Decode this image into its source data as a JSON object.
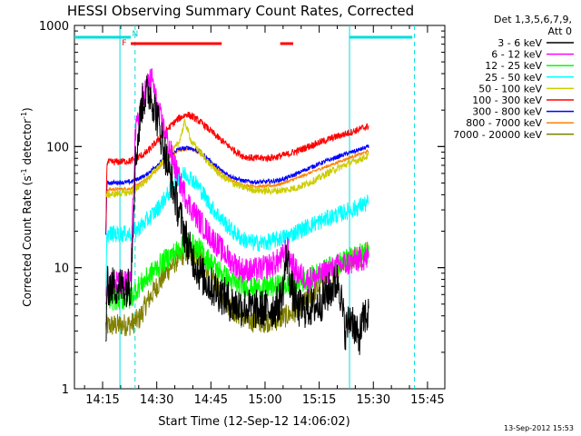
{
  "chart_data": {
    "type": "line",
    "title": "HESSI Observing Summary Count Rates, Corrected",
    "xlabel": "Start Time (12-Sep-12 14:06:02)",
    "ylabel_prefix": "Corrected Count Rate (s",
    "ylabel_exp1": "-1",
    "ylabel_mid": " detector",
    "ylabel_exp2": "-1",
    "ylabel_suffix": ")",
    "yscale": "log",
    "xlim": [
      14.12,
      15.83
    ],
    "ylim": [
      1,
      1000
    ],
    "x_unit": "hour of day (12-Sep-12)",
    "x_ticks": [
      {
        "h": 14.25,
        "label": "14:15"
      },
      {
        "h": 14.5,
        "label": "14:30"
      },
      {
        "h": 14.75,
        "label": "14:45"
      },
      {
        "h": 15.0,
        "label": "15:00"
      },
      {
        "h": 15.25,
        "label": "15:15"
      },
      {
        "h": 15.5,
        "label": "15:30"
      },
      {
        "h": 15.75,
        "label": "15:45"
      }
    ],
    "y_ticks": [
      {
        "v": 1,
        "label": "1"
      },
      {
        "v": 10,
        "label": "10"
      },
      {
        "v": 100,
        "label": "100"
      },
      {
        "v": 1000,
        "label": "1000"
      }
    ],
    "legend_header": [
      "Det 1,3,5,6,7,9,",
      "Att 0"
    ],
    "legend_position": "right",
    "data_start": 14.265,
    "data_end": 15.48,
    "series": [
      {
        "name": "3 - 6 keV",
        "color": "#000000",
        "noise": 0.28,
        "points": [
          [
            14.265,
            2.3
          ],
          [
            14.27,
            7
          ],
          [
            14.3,
            7
          ],
          [
            14.36,
            7
          ],
          [
            14.38,
            7
          ],
          [
            14.4,
            70
          ],
          [
            14.43,
            220
          ],
          [
            14.45,
            270
          ],
          [
            14.47,
            280
          ],
          [
            14.5,
            180
          ],
          [
            14.55,
            70
          ],
          [
            14.6,
            30
          ],
          [
            14.65,
            14
          ],
          [
            14.7,
            9
          ],
          [
            14.75,
            7
          ],
          [
            14.8,
            6
          ],
          [
            14.85,
            5
          ],
          [
            14.95,
            4.5
          ],
          [
            15.05,
            4.6
          ],
          [
            15.08,
            6
          ],
          [
            15.1,
            13
          ],
          [
            15.12,
            7
          ],
          [
            15.15,
            4.6
          ],
          [
            15.2,
            4.6
          ],
          [
            15.25,
            5
          ],
          [
            15.3,
            6.5
          ],
          [
            15.34,
            8
          ],
          [
            15.37,
            3
          ],
          [
            15.4,
            4
          ],
          [
            15.43,
            2.5
          ],
          [
            15.46,
            4
          ],
          [
            15.48,
            4
          ]
        ]
      },
      {
        "name": "6 - 12 keV",
        "color": "#ff00ff",
        "noise": 0.18,
        "points": [
          [
            14.265,
            5.5
          ],
          [
            14.27,
            7.5
          ],
          [
            14.36,
            7.5
          ],
          [
            14.38,
            8
          ],
          [
            14.4,
            120
          ],
          [
            14.43,
            240
          ],
          [
            14.46,
            340
          ],
          [
            14.48,
            360
          ],
          [
            14.5,
            220
          ],
          [
            14.55,
            110
          ],
          [
            14.6,
            55
          ],
          [
            14.65,
            33
          ],
          [
            14.7,
            24
          ],
          [
            14.75,
            18
          ],
          [
            14.8,
            14
          ],
          [
            14.85,
            11
          ],
          [
            14.9,
            9.5
          ],
          [
            14.95,
            9.5
          ],
          [
            15.0,
            10
          ],
          [
            15.05,
            11
          ],
          [
            15.08,
            12
          ],
          [
            15.1,
            15
          ],
          [
            15.12,
            11
          ],
          [
            15.15,
            9
          ],
          [
            15.2,
            8
          ],
          [
            15.25,
            8.5
          ],
          [
            15.3,
            9.5
          ],
          [
            15.35,
            10.5
          ],
          [
            15.4,
            11
          ],
          [
            15.45,
            12
          ],
          [
            15.48,
            12
          ]
        ]
      },
      {
        "name": "12 - 25 keV",
        "color": "#00ff00",
        "noise": 0.16,
        "points": [
          [
            14.265,
            5.5
          ],
          [
            14.27,
            5.5
          ],
          [
            14.38,
            5.5
          ],
          [
            14.4,
            6.5
          ],
          [
            14.45,
            8
          ],
          [
            14.5,
            10
          ],
          [
            14.55,
            12
          ],
          [
            14.6,
            14
          ],
          [
            14.65,
            16
          ],
          [
            14.7,
            14
          ],
          [
            14.75,
            11
          ],
          [
            14.8,
            9
          ],
          [
            14.85,
            7.5
          ],
          [
            14.9,
            7
          ],
          [
            14.95,
            6.8
          ],
          [
            15.0,
            6.8
          ],
          [
            15.05,
            7
          ],
          [
            15.1,
            7.2
          ],
          [
            15.15,
            7.5
          ],
          [
            15.2,
            8
          ],
          [
            15.25,
            9
          ],
          [
            15.3,
            10
          ],
          [
            15.35,
            11
          ],
          [
            15.4,
            12
          ],
          [
            15.45,
            13
          ],
          [
            15.48,
            13
          ]
        ]
      },
      {
        "name": "25 - 50 keV",
        "color": "#00ffff",
        "noise": 0.12,
        "points": [
          [
            14.265,
            5.5
          ],
          [
            14.27,
            19
          ],
          [
            14.38,
            19
          ],
          [
            14.4,
            20
          ],
          [
            14.45,
            24
          ],
          [
            14.5,
            30
          ],
          [
            14.55,
            40
          ],
          [
            14.6,
            55
          ],
          [
            14.63,
            60
          ],
          [
            14.66,
            55
          ],
          [
            14.7,
            45
          ],
          [
            14.75,
            32
          ],
          [
            14.8,
            25
          ],
          [
            14.85,
            20
          ],
          [
            14.9,
            17
          ],
          [
            14.95,
            16
          ],
          [
            15.0,
            16
          ],
          [
            15.05,
            17
          ],
          [
            15.1,
            18
          ],
          [
            15.15,
            20
          ],
          [
            15.2,
            22
          ],
          [
            15.25,
            24
          ],
          [
            15.3,
            26
          ],
          [
            15.35,
            28
          ],
          [
            15.4,
            30
          ],
          [
            15.45,
            33
          ],
          [
            15.48,
            34
          ]
        ]
      },
      {
        "name": "50 - 100 keV",
        "color": "#cccc00",
        "noise": 0.05,
        "points": [
          [
            14.265,
            40
          ],
          [
            14.27,
            40
          ],
          [
            14.38,
            42
          ],
          [
            14.45,
            52
          ],
          [
            14.5,
            65
          ],
          [
            14.55,
            82
          ],
          [
            14.6,
            105
          ],
          [
            14.63,
            160
          ],
          [
            14.66,
            110
          ],
          [
            14.7,
            90
          ],
          [
            14.75,
            70
          ],
          [
            14.8,
            57
          ],
          [
            14.85,
            50
          ],
          [
            14.9,
            46
          ],
          [
            14.95,
            44
          ],
          [
            15.0,
            43
          ],
          [
            15.05,
            43
          ],
          [
            15.1,
            44
          ],
          [
            15.15,
            46
          ],
          [
            15.2,
            50
          ],
          [
            15.25,
            55
          ],
          [
            15.3,
            62
          ],
          [
            15.35,
            68
          ],
          [
            15.4,
            74
          ],
          [
            15.45,
            80
          ],
          [
            15.48,
            84
          ]
        ]
      },
      {
        "name": "100 - 300 keV",
        "color": "#ff0000",
        "noise": 0.05,
        "points": [
          [
            14.265,
            20
          ],
          [
            14.27,
            74
          ],
          [
            14.38,
            76
          ],
          [
            14.45,
            88
          ],
          [
            14.5,
            110
          ],
          [
            14.55,
            140
          ],
          [
            14.6,
            170
          ],
          [
            14.64,
            185
          ],
          [
            14.68,
            170
          ],
          [
            14.72,
            150
          ],
          [
            14.78,
            120
          ],
          [
            14.85,
            95
          ],
          [
            14.9,
            83
          ],
          [
            14.95,
            80
          ],
          [
            15.0,
            80
          ],
          [
            15.05,
            82
          ],
          [
            15.1,
            86
          ],
          [
            15.15,
            92
          ],
          [
            15.2,
            100
          ],
          [
            15.25,
            108
          ],
          [
            15.3,
            116
          ],
          [
            15.35,
            124
          ],
          [
            15.4,
            132
          ],
          [
            15.45,
            142
          ],
          [
            15.48,
            148
          ]
        ]
      },
      {
        "name": "300 - 800 keV",
        "color": "#0000ff",
        "noise": 0.03,
        "points": [
          [
            14.265,
            18
          ],
          [
            14.27,
            50
          ],
          [
            14.38,
            51
          ],
          [
            14.45,
            58
          ],
          [
            14.5,
            70
          ],
          [
            14.55,
            83
          ],
          [
            14.6,
            95
          ],
          [
            14.65,
            98
          ],
          [
            14.7,
            90
          ],
          [
            14.75,
            75
          ],
          [
            14.8,
            63
          ],
          [
            14.85,
            56
          ],
          [
            14.9,
            52
          ],
          [
            14.95,
            51
          ],
          [
            15.0,
            51
          ],
          [
            15.05,
            52
          ],
          [
            15.1,
            55
          ],
          [
            15.15,
            60
          ],
          [
            15.2,
            66
          ],
          [
            15.25,
            72
          ],
          [
            15.3,
            78
          ],
          [
            15.35,
            84
          ],
          [
            15.4,
            90
          ],
          [
            15.45,
            96
          ],
          [
            15.48,
            100
          ]
        ]
      },
      {
        "name": "800 - 7000 keV",
        "color": "#ff8000",
        "noise": 0.02,
        "points": [
          [
            14.265,
            40
          ],
          [
            14.27,
            44
          ],
          [
            14.38,
            45
          ],
          [
            14.45,
            53
          ],
          [
            14.5,
            64
          ],
          [
            14.55,
            78
          ],
          [
            14.6,
            93
          ],
          [
            14.65,
            96
          ],
          [
            14.7,
            88
          ],
          [
            14.75,
            72
          ],
          [
            14.8,
            60
          ],
          [
            14.85,
            52
          ],
          [
            14.9,
            48
          ],
          [
            14.95,
            47
          ],
          [
            15.0,
            47
          ],
          [
            15.05,
            48
          ],
          [
            15.1,
            51
          ],
          [
            15.15,
            55
          ],
          [
            15.2,
            60
          ],
          [
            15.25,
            65
          ],
          [
            15.3,
            70
          ],
          [
            15.35,
            76
          ],
          [
            15.4,
            82
          ],
          [
            15.45,
            88
          ],
          [
            15.48,
            92
          ]
        ]
      },
      {
        "name": "7000 - 20000 keV",
        "color": "#808000",
        "noise": 0.16,
        "points": [
          [
            14.265,
            3.3
          ],
          [
            14.27,
            3.3
          ],
          [
            14.38,
            3.4
          ],
          [
            14.42,
            3.8
          ],
          [
            14.45,
            5
          ],
          [
            14.5,
            7
          ],
          [
            14.55,
            9.5
          ],
          [
            14.6,
            12
          ],
          [
            14.65,
            14
          ],
          [
            14.7,
            12
          ],
          [
            14.75,
            9
          ],
          [
            14.8,
            6
          ],
          [
            14.85,
            4.5
          ],
          [
            14.9,
            3.8
          ],
          [
            14.95,
            3.6
          ],
          [
            15.0,
            3.6
          ],
          [
            15.05,
            3.7
          ],
          [
            15.1,
            4
          ],
          [
            15.15,
            4.5
          ],
          [
            15.2,
            5.5
          ],
          [
            15.25,
            7
          ],
          [
            15.3,
            9
          ],
          [
            15.35,
            10.5
          ],
          [
            15.4,
            12
          ],
          [
            15.45,
            13
          ],
          [
            15.48,
            14
          ]
        ]
      }
    ],
    "flags": [
      {
        "label": "F",
        "color": "#ff0000",
        "h": 14.35,
        "text": true
      },
      {
        "label": "N",
        "color": "#00cccc",
        "h": 14.4,
        "text": true
      }
    ],
    "red_bars": [
      [
        14.38,
        14.8
      ],
      [
        15.07,
        15.13
      ]
    ],
    "cyan_bars": [
      [
        14.12,
        14.38
      ],
      [
        15.39,
        15.68
      ]
    ],
    "cyan_solid_lines": [
      14.33,
      15.39
    ],
    "cyan_dashed_lines": [
      14.4,
      15.69
    ]
  },
  "footer": {
    "timestamp": "13-Sep-2012 15:53"
  }
}
